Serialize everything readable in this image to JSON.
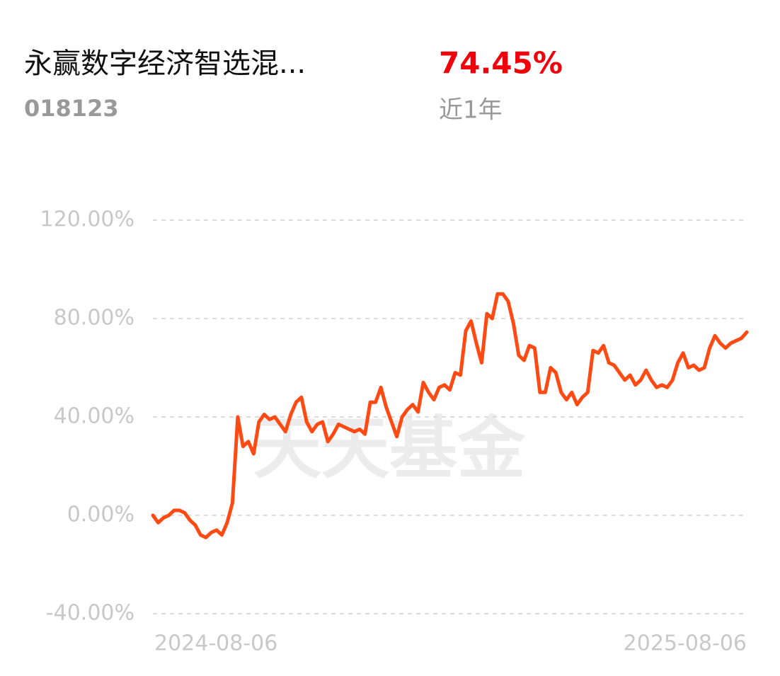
{
  "header": {
    "fund_name": "永赢数字经济智选混...",
    "fund_code": "018123",
    "return": {
      "value": 74.45,
      "label": "74.45%"
    },
    "period": "近1年"
  },
  "chart_data": {
    "type": "line",
    "watermark": "天天基金",
    "categories": [
      "2024-08-06",
      null,
      null,
      null,
      null,
      null,
      null,
      null,
      null,
      null,
      null,
      null,
      null,
      null,
      null,
      null,
      null,
      null,
      null,
      null,
      null,
      null,
      null,
      null,
      null,
      null,
      null,
      null,
      null,
      null,
      null,
      null,
      null,
      null,
      null,
      null,
      null,
      null,
      null,
      null,
      null,
      null,
      null,
      null,
      null,
      null,
      null,
      null,
      null,
      null,
      null,
      null,
      null,
      null,
      null,
      null,
      null,
      null,
      null,
      null,
      null,
      null,
      null,
      null,
      null,
      null,
      null,
      null,
      null,
      null,
      null,
      null,
      null,
      null,
      null,
      null,
      null,
      null,
      null,
      null,
      null,
      null,
      null,
      null,
      null,
      null,
      null,
      null,
      null,
      null,
      null,
      null,
      null,
      null,
      null,
      null,
      null,
      null,
      null,
      null,
      null,
      null,
      null,
      null,
      null,
      null,
      null,
      null,
      null,
      null,
      null,
      null,
      "2025-08-06"
    ],
    "series": [
      {
        "color": "#ff4a14",
        "values": [
          0,
          -3,
          -1,
          0,
          2,
          2,
          1,
          -2,
          -4,
          -8,
          -9,
          -7,
          -6,
          -8,
          -3,
          5,
          40,
          28,
          30,
          25,
          38,
          41,
          39,
          40,
          37,
          34,
          41,
          46,
          48,
          38,
          34,
          37,
          38,
          30,
          33,
          37,
          36,
          35,
          34,
          35,
          33,
          46,
          46,
          52,
          44,
          38,
          32,
          40,
          43,
          45,
          42,
          54,
          50,
          47,
          52,
          53,
          51,
          58,
          57,
          75,
          79,
          70,
          62,
          82,
          80,
          90,
          90,
          87,
          78,
          65,
          63,
          69,
          68,
          50,
          50,
          60,
          58,
          50,
          47,
          50,
          45,
          48,
          50,
          67,
          66,
          69,
          62,
          61,
          58,
          55,
          57,
          53,
          55,
          59,
          55,
          52,
          53,
          52,
          55,
          62,
          66,
          60,
          61,
          59,
          60,
          68,
          73,
          70,
          68,
          70,
          71,
          72,
          74.45
        ]
      }
    ],
    "ylim": [
      -40,
      120
    ],
    "yticks": [
      {
        "value": -40,
        "label": "-40.00%"
      },
      {
        "value": 0,
        "label": "0.00%"
      },
      {
        "value": 40,
        "label": "40.00%"
      },
      {
        "value": 80,
        "label": "80.00%"
      },
      {
        "value": 120,
        "label": "120.00%"
      }
    ],
    "grid": true
  }
}
